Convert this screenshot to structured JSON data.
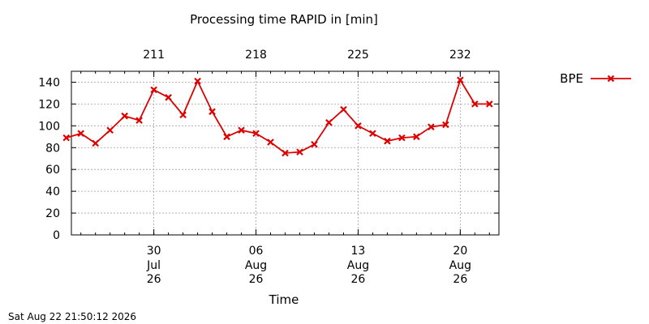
{
  "chart_data": {
    "type": "line",
    "title": "Processing time RAPID in [min]",
    "xlabel": "Time",
    "ylabel": "",
    "ylim": [
      0,
      150
    ],
    "yticks": [
      0,
      20,
      40,
      60,
      80,
      100,
      120,
      140
    ],
    "x_range": [
      "2026-07-24",
      "2026-08-23"
    ],
    "x_ticks_bottom": [
      {
        "date": "2026-07-30",
        "line1": "30",
        "line2": "Jul",
        "line3": "26"
      },
      {
        "date": "2026-08-06",
        "line1": "06",
        "line2": "Aug",
        "line3": "26"
      },
      {
        "date": "2026-08-13",
        "line1": "13",
        "line2": "Aug",
        "line3": "26"
      },
      {
        "date": "2026-08-20",
        "line1": "20",
        "line2": "Aug",
        "line3": "26"
      }
    ],
    "x_ticks_top": [
      {
        "date": "2026-07-30",
        "label": "211"
      },
      {
        "date": "2026-08-06",
        "label": "218"
      },
      {
        "date": "2026-08-13",
        "label": "225"
      },
      {
        "date": "2026-08-20",
        "label": "232"
      }
    ],
    "grid": true,
    "legend_position": "right",
    "series": [
      {
        "name": "BPE",
        "color": "#dd0000",
        "marker": "x",
        "x": [
          "2026-07-24",
          "2026-07-25",
          "2026-07-26",
          "2026-07-27",
          "2026-07-28",
          "2026-07-29",
          "2026-07-30",
          "2026-07-31",
          "2026-08-01",
          "2026-08-02",
          "2026-08-03",
          "2026-08-04",
          "2026-08-05",
          "2026-08-06",
          "2026-08-07",
          "2026-08-08",
          "2026-08-09",
          "2026-08-10",
          "2026-08-11",
          "2026-08-12",
          "2026-08-13",
          "2026-08-14",
          "2026-08-15",
          "2026-08-16",
          "2026-08-17",
          "2026-08-18",
          "2026-08-19",
          "2026-08-20",
          "2026-08-21",
          "2026-08-22"
        ],
        "values": [
          89,
          93,
          84,
          96,
          109,
          105,
          133,
          126,
          110,
          141,
          113,
          90,
          96,
          93,
          85,
          75,
          76,
          83,
          103,
          115,
          100,
          93,
          86,
          89,
          90,
          99,
          101,
          142,
          120,
          120
        ]
      }
    ]
  },
  "footer": {
    "timestamp": "Sat Aug 22 21:50:12 2026"
  }
}
